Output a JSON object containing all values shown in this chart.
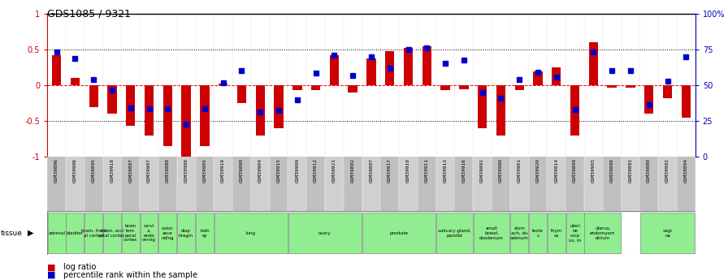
{
  "title": "GDS1085 / 9321",
  "samples": [
    "GSM39896",
    "GSM39906",
    "GSM39895",
    "GSM39918",
    "GSM39887",
    "GSM39907",
    "GSM39888",
    "GSM39908",
    "GSM39905",
    "GSM39919",
    "GSM39890",
    "GSM39904",
    "GSM39915",
    "GSM39909",
    "GSM39912",
    "GSM39921",
    "GSM39892",
    "GSM39897",
    "GSM39917",
    "GSM39910",
    "GSM39911",
    "GSM39913",
    "GSM39916",
    "GSM39891",
    "GSM39900",
    "GSM39901",
    "GSM39920",
    "GSM39914",
    "GSM39899",
    "GSM39903",
    "GSM39898",
    "GSM39893",
    "GSM39889",
    "GSM39902",
    "GSM39894"
  ],
  "log_ratio": [
    0.42,
    0.1,
    -0.3,
    -0.4,
    -0.57,
    -0.7,
    -0.85,
    -1.0,
    -0.85,
    0.03,
    -0.25,
    -0.7,
    -0.6,
    -0.07,
    -0.07,
    0.42,
    -0.1,
    0.38,
    0.48,
    0.52,
    0.55,
    -0.07,
    -0.05,
    -0.6,
    -0.7,
    -0.07,
    0.2,
    0.25,
    -0.7,
    0.6,
    -0.03,
    -0.03,
    -0.4,
    -0.18,
    -0.45
  ],
  "pct_rank": [
    0.47,
    0.38,
    0.08,
    -0.07,
    -0.32,
    -0.33,
    -0.33,
    -0.54,
    -0.33,
    0.04,
    0.21,
    -0.37,
    -0.35,
    -0.2,
    0.17,
    0.42,
    0.14,
    0.4,
    0.24,
    0.5,
    0.53,
    0.31,
    0.35,
    -0.1,
    -0.18,
    0.08,
    0.18,
    0.12,
    -0.34,
    0.47,
    0.21,
    0.21,
    -0.27,
    0.06,
    0.4
  ],
  "tissue_groups": [
    {
      "label": "adrenal",
      "start": 0,
      "end": 1
    },
    {
      "label": "bladder",
      "start": 1,
      "end": 2
    },
    {
      "label": "brain, front\nal cortex",
      "start": 2,
      "end": 3
    },
    {
      "label": "brain, occi\npital cortex",
      "start": 3,
      "end": 4
    },
    {
      "label": "brain\ntem\nporal\ncortex",
      "start": 4,
      "end": 5
    },
    {
      "label": "cervi\nx,\nendo\ncervig",
      "start": 5,
      "end": 6
    },
    {
      "label": "colon\nasce\nnding",
      "start": 6,
      "end": 7
    },
    {
      "label": "diap\nhragm",
      "start": 7,
      "end": 8
    },
    {
      "label": "kidn\ney",
      "start": 8,
      "end": 9
    },
    {
      "label": "lung",
      "start": 9,
      "end": 13
    },
    {
      "label": "ovary",
      "start": 13,
      "end": 17
    },
    {
      "label": "prostate",
      "start": 17,
      "end": 21
    },
    {
      "label": "salivary gland,\nparotid",
      "start": 21,
      "end": 23
    },
    {
      "label": "small\nbowel,\nduodenum",
      "start": 23,
      "end": 25
    },
    {
      "label": "stom\nach, du\nodenum",
      "start": 25,
      "end": 26
    },
    {
      "label": "teste\ns",
      "start": 26,
      "end": 27
    },
    {
      "label": "thym\nus",
      "start": 27,
      "end": 28
    },
    {
      "label": "uteri\nne\ncorp\nus, m",
      "start": 28,
      "end": 29
    },
    {
      "label": "uterus,\nendomyom\netrium",
      "start": 29,
      "end": 31
    },
    {
      "label": "vagi\nna",
      "start": 32,
      "end": 35
    }
  ],
  "ylim": [
    -1.0,
    1.0
  ],
  "bar_color": "#CC0000",
  "dot_color": "#0000CC",
  "tick_color_left": "#CC0000",
  "tick_color_right": "#0000BB",
  "tissue_color": "#90EE90",
  "tissue_border_color": "#888888",
  "xticklabel_bg": "#C8C8C8"
}
